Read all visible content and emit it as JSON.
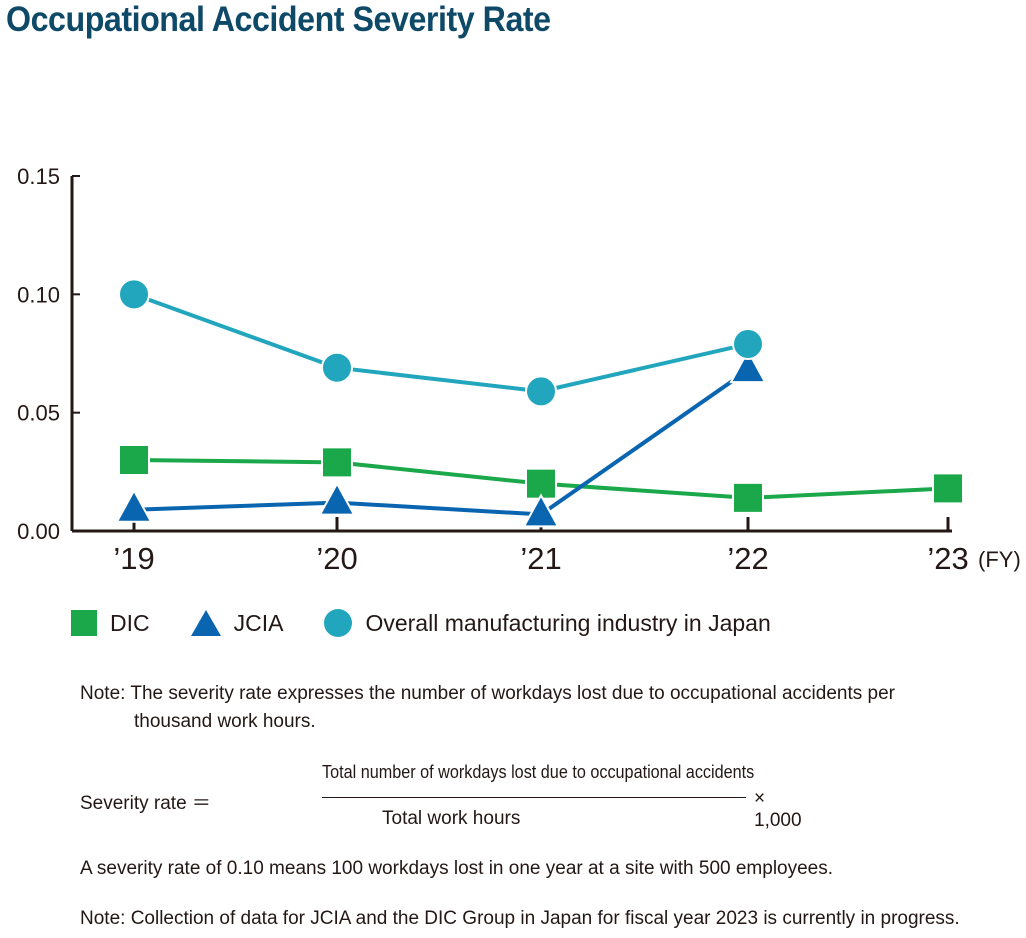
{
  "title": "Occupational Accident Severity Rate",
  "chart_data": {
    "type": "line",
    "categories": [
      "’19",
      "’20",
      "’21",
      "’22",
      "’23"
    ],
    "x_unit": "(FY)",
    "ylim": [
      0,
      0.15
    ],
    "y_ticks": [
      "0.15",
      "0.10",
      "0.05",
      "0.00"
    ],
    "y_tick_values": [
      0.15,
      0.1,
      0.05,
      0.0
    ],
    "series": [
      {
        "name": "DIC",
        "color": "#1aa84a",
        "marker": "square",
        "values": [
          0.03,
          0.029,
          0.02,
          0.014,
          0.018
        ]
      },
      {
        "name": "JCIA",
        "color": "#0a65b0",
        "marker": "triangle",
        "values": [
          0.009,
          0.012,
          0.007,
          0.068,
          null
        ]
      },
      {
        "name": "Overall manufacturing industry in Japan",
        "color": "#22a6bd",
        "marker": "circle",
        "values": [
          0.1,
          0.069,
          0.059,
          0.079,
          null
        ]
      }
    ]
  },
  "notes": {
    "note1_line1": "Note: The severity rate expresses the number of workdays lost due to occupational accidents per",
    "note1_line2": "thousand work hours.",
    "formula_lhs": "Severity rate  ＝",
    "formula_numerator": "Total number of workdays lost due to occupational accidents",
    "formula_denominator": "Total work hours",
    "formula_multiplier": "× 1,000",
    "example": "A severity rate of 0.10 means 100 workdays lost in one year at a site with 500 employees.",
    "note2": "Note: Collection of data for JCIA and the DIC Group in Japan for fiscal year 2023 is currently in progress."
  }
}
